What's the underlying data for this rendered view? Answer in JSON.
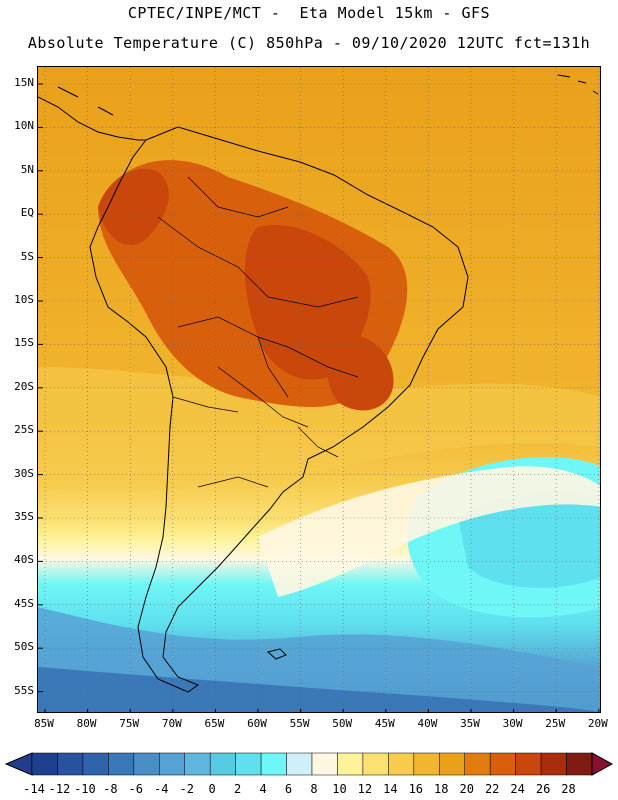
{
  "header": {
    "line1": "CPTEC/INPE/MCT -  Eta Model 15km - GFS",
    "line2": "Absolute Temperature (C) 850hPa - 09/10/2020 12UTC fct=131h"
  },
  "map": {
    "variable": "Absolute Temperature (C) 850hPa",
    "lat_labels": [
      "15N",
      "10N",
      "5N",
      "EQ",
      "5S",
      "10S",
      "15S",
      "20S",
      "25S",
      "30S",
      "35S",
      "40S",
      "45S",
      "50S",
      "55S"
    ],
    "lon_labels": [
      "85W",
      "80W",
      "75W",
      "70W",
      "65W",
      "60W",
      "55W",
      "50W",
      "45W",
      "40W",
      "35W",
      "30W",
      "25W",
      "20W"
    ]
  },
  "colorbar": {
    "labels": [
      "-14",
      "-12",
      "-10",
      "-8",
      "-6",
      "-4",
      "-2",
      "0",
      "2",
      "4",
      "6",
      "8",
      "10",
      "12",
      "14",
      "16",
      "18",
      "20",
      "22",
      "24",
      "26",
      "28"
    ],
    "colors": [
      "#1f3f8f",
      "#27529e",
      "#2f63ab",
      "#3a78b8",
      "#4a8ec6",
      "#56a2d4",
      "#5fb7de",
      "#58cbe4",
      "#5fe0ee",
      "#6ff6f6",
      "#cfeff9",
      "#fff7e2",
      "#fff39a",
      "#fbe072",
      "#f6cb4e",
      "#f1b52f",
      "#eaa01a",
      "#e07c10",
      "#d8600c",
      "#c9470a",
      "#a92d0a",
      "#7f1b10"
    ],
    "low_color": "#243c8c",
    "high_color": "#8a0f30"
  }
}
